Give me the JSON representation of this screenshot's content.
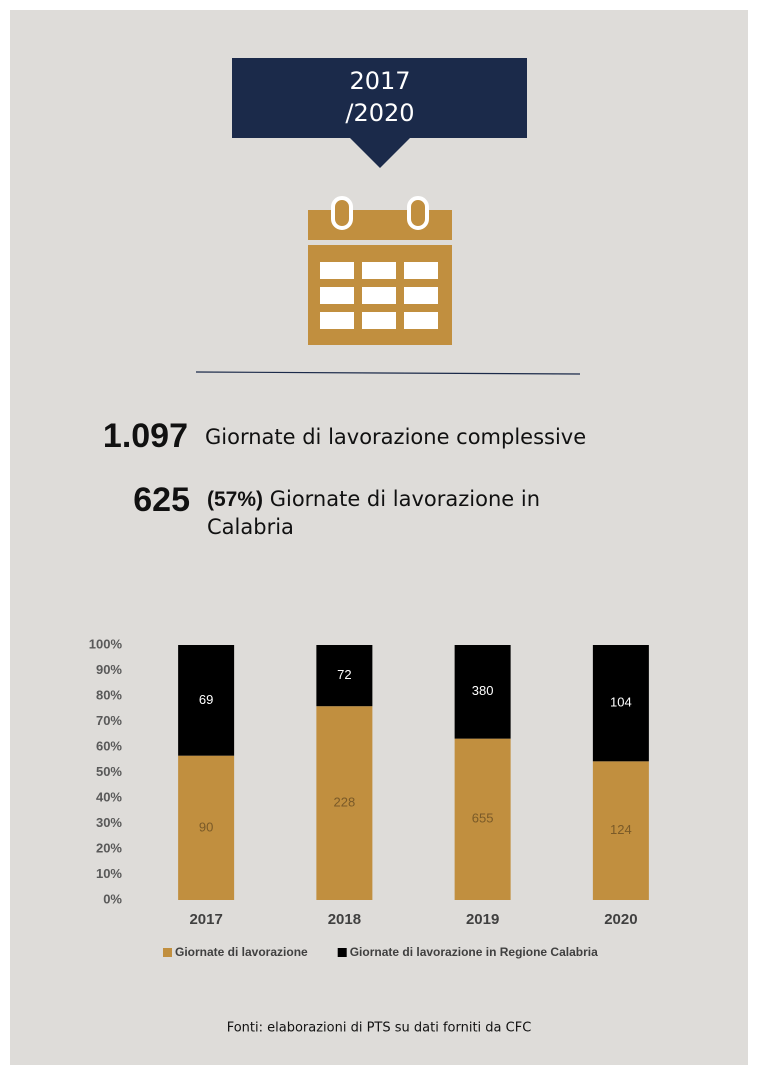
{
  "header": {
    "period_line1": "2017",
    "period_line2": "/2020"
  },
  "stats": [
    {
      "number": "1.097",
      "text": "Giornate di lavorazione complessive"
    },
    {
      "number": "625",
      "share": "(57%)",
      "text_line1": " Giornate di lavorazione in",
      "text_line2": "Calabria"
    }
  ],
  "chart_data": {
    "type": "bar",
    "stacking": "percent",
    "categories": [
      "2017",
      "2018",
      "2019",
      "2020"
    ],
    "series": [
      {
        "name": "Giornate di lavorazione",
        "color": "#c18f3f",
        "label_color": "#7a5a28",
        "values": [
          90,
          228,
          655,
          124
        ]
      },
      {
        "name": "Giornate di lavorazione in Regione Calabria",
        "color": "#000000",
        "label_color": "#ffffff",
        "values": [
          69,
          72,
          380,
          104
        ]
      }
    ],
    "ylim": [
      0,
      100
    ],
    "yticks": [
      {
        "value": 0,
        "label": "0%"
      },
      {
        "value": 10,
        "label": "10%"
      },
      {
        "value": 20,
        "label": "20%"
      },
      {
        "value": 30,
        "label": "30%"
      },
      {
        "value": 40,
        "label": "40%"
      },
      {
        "value": 50,
        "label": "50%"
      },
      {
        "value": 60,
        "label": "60%"
      },
      {
        "value": 70,
        "label": "70%"
      },
      {
        "value": 80,
        "label": "80%"
      },
      {
        "value": 90,
        "label": "90%"
      },
      {
        "value": 100,
        "label": "100%"
      }
    ],
    "grid": false,
    "legend": "bottom"
  },
  "source": "Fonti: elaborazioni di PTS su dati forniti da CFC"
}
